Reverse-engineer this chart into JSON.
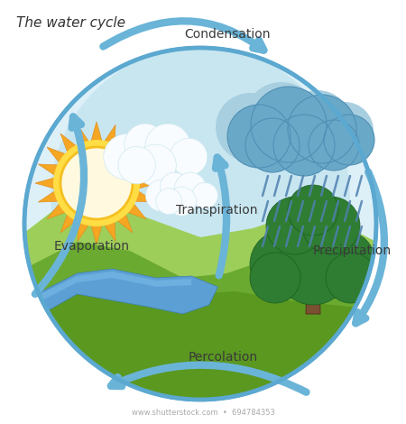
{
  "title": "The water cycle",
  "bg": "#ffffff",
  "sky": "#c8e6f0",
  "sky_light": "#ddf0f8",
  "circle_edge": "#5ba8d0",
  "ground_light": "#8dc63f",
  "ground_mid": "#6aaa30",
  "ground_dark": "#4e9020",
  "water_blue": "#5b9fd4",
  "water_light": "#85bce0",
  "arrow_fill": "#6ab4d8",
  "arrow_edge": "#4a8fb5",
  "sun_white": "#fffde0",
  "sun_yellow": "#ffd84d",
  "sun_orange": "#f5a623",
  "cloud_white": "#f0f8ff",
  "cloud_blue_dark": "#5a8fba",
  "cloud_blue_mid": "#7ab5d8",
  "cloud_blue_light": "#a8d0e8",
  "rain_blue": "#5080b0",
  "tree_green_dark": "#2d6e2d",
  "tree_green_mid": "#3a8a3a",
  "tree_trunk": "#7a5030",
  "label_color": "#3a3a3a",
  "labels": {
    "condensation": "Condensation",
    "precipitation": "Precipitation",
    "transpiration": "Transpiration",
    "evaporation": "Evaporation",
    "percolation": "Percolation"
  }
}
